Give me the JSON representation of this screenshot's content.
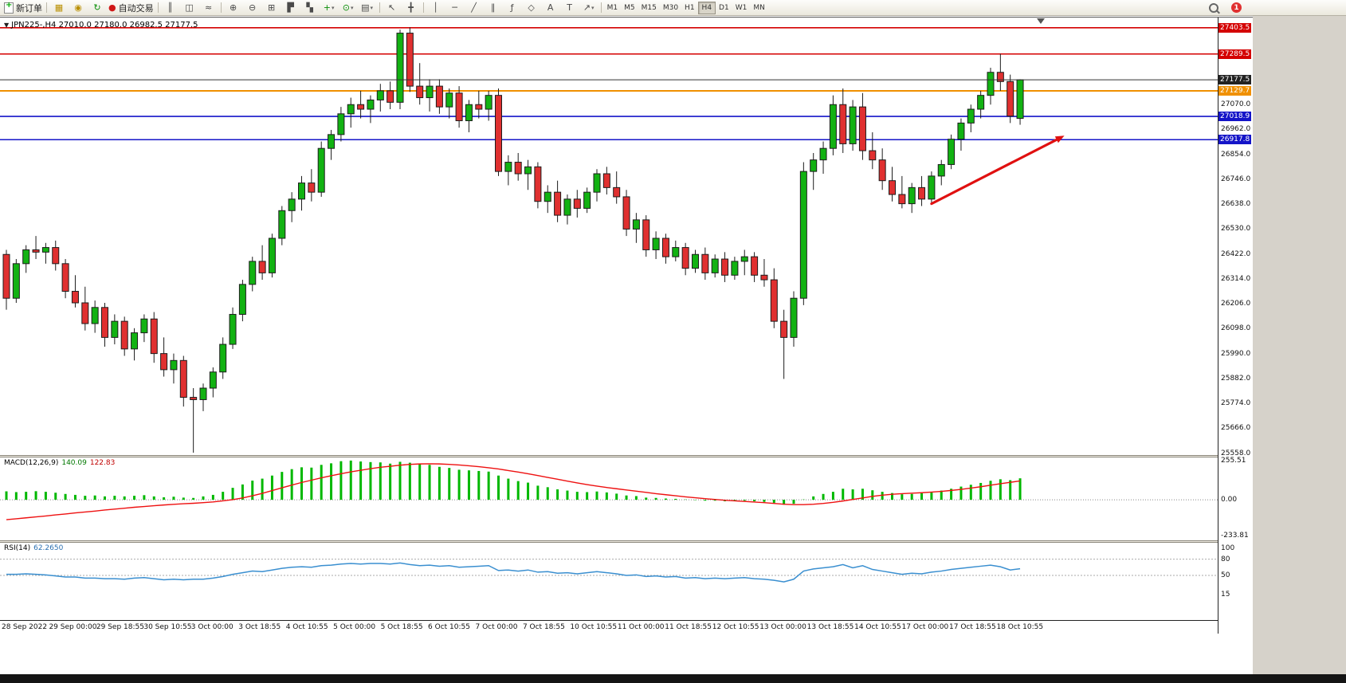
{
  "window": {
    "symbol_period": "JPN225-,H4",
    "ohlc": "27010.0 27180.0 26982.5 27177.5"
  },
  "toolbar": {
    "new_order_label": "新订单",
    "auto_trading_label": "自动交易",
    "timeframes": [
      "M1",
      "M5",
      "M15",
      "M30",
      "H1",
      "H4",
      "D1",
      "W1",
      "MN"
    ],
    "active_timeframe": "H4",
    "notification_count": "1"
  },
  "icons": {
    "market_watch": "▦",
    "alerts": "◉",
    "refresh": "↻",
    "autotrade": "●",
    "bar_chart": "║",
    "candle_chart": "◫",
    "line_chart": "≈",
    "zoom_in": "⊕",
    "zoom_out": "⊖",
    "tile_windows": "⊞",
    "cascade_windows": "▛",
    "arrange_windows": "▚",
    "new_chart": "+",
    "periods": "⊙",
    "templates": "▤",
    "cursor": "↖",
    "crosshair": "╋",
    "vertical_line": "│",
    "horizontal_line": "─",
    "trendline": "╱",
    "channel": "∥",
    "fibonacci": "ƒ",
    "shapes": "◇",
    "text": "A",
    "text_label": "T",
    "arrows": "↗",
    "dropdown": "▾",
    "one_click": "▼"
  },
  "chart_data": {
    "type": "candlestick",
    "symbol": "JPN225-",
    "timeframe": "H4",
    "current_bar": {
      "open": 27010.0,
      "high": 27180.0,
      "low": 26982.5,
      "close": 27177.5
    },
    "main": {
      "price_range": {
        "max": 27420,
        "min": 25560
      },
      "price_axis_ticks": [
        27070.0,
        26962.0,
        26854.0,
        26746.0,
        26638.0,
        26530.0,
        26422.0,
        26314.0,
        26206.0,
        26098.0,
        25990.0,
        25882.0,
        25774.0,
        25666.0,
        25558.0
      ],
      "up_color": "#12b212",
      "down_color": "#e03030",
      "levels": [
        {
          "label": "27403.5",
          "price": 27403.5,
          "color": "#d40000",
          "type": "resistance"
        },
        {
          "label": "27289.5",
          "price": 27289.5,
          "color": "#d40000",
          "type": "resistance"
        },
        {
          "label": "27177.5",
          "price": 27177.5,
          "color": "#333333",
          "type": "current-price"
        },
        {
          "label": "27129.7",
          "price": 27129.7,
          "color": "#f09000",
          "type": "level"
        },
        {
          "label": "27018.9",
          "price": 27018.9,
          "color": "#1414c8",
          "type": "support"
        },
        {
          "label": "26917.8",
          "price": 26917.8,
          "color": "#1414c8",
          "type": "support"
        }
      ],
      "arrow": {
        "from_bar": 94,
        "from_price": 26640,
        "to_bar": 107.5,
        "to_price": 26935,
        "color": "#e01010"
      },
      "candles": [
        [
          26420,
          26440,
          26180,
          26230
        ],
        [
          26230,
          26400,
          26210,
          26380
        ],
        [
          26380,
          26460,
          26340,
          26440
        ],
        [
          26440,
          26500,
          26400,
          26430
        ],
        [
          26430,
          26470,
          26380,
          26450
        ],
        [
          26450,
          26480,
          26350,
          26380
        ],
        [
          26380,
          26400,
          26230,
          26260
        ],
        [
          26260,
          26330,
          26190,
          26210
        ],
        [
          26210,
          26280,
          26090,
          26120
        ],
        [
          26120,
          26220,
          26080,
          26190
        ],
        [
          26190,
          26210,
          26020,
          26060
        ],
        [
          26060,
          26160,
          26030,
          26130
        ],
        [
          26130,
          26150,
          25980,
          26010
        ],
        [
          26010,
          26100,
          25960,
          26080
        ],
        [
          26080,
          26160,
          26040,
          26140
        ],
        [
          26140,
          26170,
          25950,
          25990
        ],
        [
          25990,
          26060,
          25890,
          25920
        ],
        [
          25920,
          25990,
          25860,
          25960
        ],
        [
          25960,
          25980,
          25760,
          25800
        ],
        [
          25800,
          25840,
          25560,
          25790
        ],
        [
          25790,
          25860,
          25740,
          25840
        ],
        [
          25840,
          25930,
          25800,
          25910
        ],
        [
          25910,
          26060,
          25880,
          26030
        ],
        [
          26030,
          26190,
          26010,
          26160
        ],
        [
          26160,
          26310,
          26130,
          26290
        ],
        [
          26290,
          26410,
          26260,
          26390
        ],
        [
          26390,
          26460,
          26310,
          26340
        ],
        [
          26340,
          26510,
          26320,
          26490
        ],
        [
          26490,
          26630,
          26460,
          26610
        ],
        [
          26610,
          26690,
          26560,
          26660
        ],
        [
          26660,
          26760,
          26610,
          26730
        ],
        [
          26730,
          26790,
          26650,
          26690
        ],
        [
          26690,
          26910,
          26670,
          26880
        ],
        [
          26880,
          26960,
          26830,
          26940
        ],
        [
          26940,
          27060,
          26910,
          27030
        ],
        [
          27030,
          27100,
          26970,
          27070
        ],
        [
          27070,
          27130,
          27010,
          27050
        ],
        [
          27050,
          27110,
          26990,
          27090
        ],
        [
          27090,
          27160,
          27040,
          27130
        ],
        [
          27130,
          27170,
          27050,
          27080
        ],
        [
          27080,
          27395,
          27050,
          27380
        ],
        [
          27380,
          27405,
          27125,
          27150
        ],
        [
          27150,
          27250,
          27070,
          27100
        ],
        [
          27100,
          27180,
          27040,
          27150
        ],
        [
          27150,
          27180,
          27030,
          27060
        ],
        [
          27060,
          27140,
          27010,
          27120
        ],
        [
          27120,
          27150,
          26970,
          27000
        ],
        [
          27000,
          27090,
          26950,
          27070
        ],
        [
          27070,
          27130,
          27010,
          27050
        ],
        [
          27050,
          27130,
          27000,
          27110
        ],
        [
          27110,
          27140,
          26760,
          26780
        ],
        [
          26780,
          26850,
          26720,
          26820
        ],
        [
          26820,
          26860,
          26740,
          26770
        ],
        [
          26770,
          26830,
          26700,
          26800
        ],
        [
          26800,
          26820,
          26620,
          26650
        ],
        [
          26650,
          26720,
          26600,
          26690
        ],
        [
          26690,
          26740,
          26560,
          26590
        ],
        [
          26590,
          26680,
          26550,
          26660
        ],
        [
          26660,
          26700,
          26580,
          26620
        ],
        [
          26620,
          26710,
          26600,
          26690
        ],
        [
          26690,
          26790,
          26650,
          26770
        ],
        [
          26770,
          26800,
          26680,
          26710
        ],
        [
          26710,
          26780,
          26640,
          26670
        ],
        [
          26670,
          26700,
          26500,
          26530
        ],
        [
          26530,
          26600,
          26470,
          26570
        ],
        [
          26570,
          26590,
          26410,
          26440
        ],
        [
          26440,
          26520,
          26400,
          26490
        ],
        [
          26490,
          26510,
          26380,
          26410
        ],
        [
          26410,
          26480,
          26390,
          26450
        ],
        [
          26450,
          26470,
          26330,
          26360
        ],
        [
          26360,
          26440,
          26340,
          26420
        ],
        [
          26420,
          26450,
          26310,
          26340
        ],
        [
          26340,
          26420,
          26320,
          26400
        ],
        [
          26400,
          26430,
          26300,
          26330
        ],
        [
          26330,
          26410,
          26310,
          26390
        ],
        [
          26390,
          26440,
          26330,
          26410
        ],
        [
          26410,
          26430,
          26300,
          26330
        ],
        [
          26330,
          26400,
          26280,
          26310
        ],
        [
          26310,
          26360,
          26100,
          26130
        ],
        [
          26130,
          26180,
          25880,
          26060
        ],
        [
          26060,
          26260,
          26020,
          26230
        ],
        [
          26230,
          26820,
          26200,
          26780
        ],
        [
          26780,
          26860,
          26700,
          26830
        ],
        [
          26830,
          26910,
          26770,
          26880
        ],
        [
          26880,
          27110,
          26850,
          27070
        ],
        [
          27070,
          27140,
          26860,
          26900
        ],
        [
          26900,
          27090,
          26870,
          27060
        ],
        [
          27060,
          27120,
          26830,
          26870
        ],
        [
          26870,
          26950,
          26790,
          26830
        ],
        [
          26830,
          26880,
          26700,
          26740
        ],
        [
          26740,
          26800,
          26650,
          26680
        ],
        [
          26680,
          26760,
          26620,
          26640
        ],
        [
          26640,
          26730,
          26600,
          26710
        ],
        [
          26710,
          26760,
          26630,
          26660
        ],
        [
          26660,
          26780,
          26640,
          26760
        ],
        [
          26760,
          26830,
          26720,
          26810
        ],
        [
          26810,
          26940,
          26790,
          26920
        ],
        [
          26920,
          27010,
          26870,
          26990
        ],
        [
          26990,
          27070,
          26950,
          27050
        ],
        [
          27050,
          27130,
          27010,
          27110
        ],
        [
          27110,
          27230,
          27070,
          27210
        ],
        [
          27210,
          27290,
          27130,
          27170
        ],
        [
          27170,
          27200,
          26990,
          27020
        ],
        [
          27010,
          27180,
          26982.5,
          27177.5
        ]
      ]
    },
    "macd": {
      "name": "MACD(12,26,9)",
      "value_main": "140.09",
      "value_signal": "122.83",
      "range": {
        "max": 255.51,
        "min": -233.81
      },
      "axis_ticks": [
        {
          "label": "255.51",
          "value": 255.51
        },
        {
          "label": "0.00",
          "value": 0
        },
        {
          "label": "-233.81",
          "value": -233.81
        }
      ],
      "histogram_color": "#00b800",
      "signal_color": "#ee1111",
      "histogram": [
        55,
        50,
        52,
        56,
        52,
        46,
        38,
        32,
        26,
        28,
        22,
        26,
        22,
        26,
        30,
        22,
        16,
        20,
        14,
        12,
        22,
        32,
        52,
        78,
        100,
        125,
        138,
        158,
        182,
        200,
        212,
        210,
        228,
        238,
        252,
        256,
        250,
        246,
        244,
        236,
        248,
        242,
        235,
        228,
        215,
        208,
        196,
        192,
        188,
        184,
        158,
        138,
        122,
        112,
        92,
        82,
        68,
        60,
        52,
        50,
        54,
        48,
        40,
        28,
        24,
        14,
        12,
        8,
        6,
        2,
        -2,
        -6,
        -6,
        -10,
        -10,
        -6,
        -10,
        -14,
        -20,
        -32,
        -26,
        2,
        22,
        38,
        52,
        72,
        68,
        72,
        62,
        52,
        44,
        36,
        38,
        42,
        50,
        60,
        72,
        86,
        98,
        110,
        124,
        134,
        128,
        140.09
      ],
      "signal": [
        -130,
        -124,
        -118,
        -112,
        -106,
        -99,
        -93,
        -86,
        -80,
        -74,
        -67,
        -61,
        -55,
        -49,
        -44,
        -39,
        -34,
        -30,
        -26,
        -23,
        -19,
        -14,
        -7,
        1,
        12,
        26,
        42,
        60,
        78,
        96,
        113,
        128,
        143,
        157,
        170,
        182,
        193,
        203,
        212,
        219,
        226,
        231,
        234,
        235,
        234,
        231,
        227,
        222,
        216,
        209,
        201,
        191,
        181,
        170,
        158,
        146,
        134,
        122,
        110,
        99,
        89,
        80,
        72,
        64,
        56,
        48,
        40,
        33,
        26,
        19,
        13,
        7,
        2,
        -3,
        -7,
        -11,
        -15,
        -19,
        -24,
        -29,
        -32,
        -32,
        -29,
        -24,
        -17,
        -8,
        2,
        12,
        22,
        30,
        36,
        40,
        43,
        46,
        50,
        55,
        61,
        68,
        76,
        85,
        95,
        105,
        114,
        122.83
      ]
    },
    "rsi": {
      "name": "RSI(14)",
      "value": "62.2650",
      "range": {
        "max": 100,
        "min": 0
      },
      "axis_ticks": [
        {
          "label": "100",
          "value": 100
        },
        {
          "label": "80",
          "value": 80
        },
        {
          "label": "50",
          "value": 50
        },
        {
          "label": "15",
          "value": 15
        }
      ],
      "levels": [
        80,
        50
      ],
      "line_color": "#3a8fd0",
      "values": [
        52,
        52,
        53,
        52,
        51,
        49,
        47,
        47,
        45,
        45,
        44,
        44,
        43,
        45,
        46,
        44,
        42,
        43,
        42,
        43,
        43,
        45,
        48,
        52,
        55,
        58,
        57,
        60,
        63,
        65,
        66,
        65,
        68,
        69,
        71,
        72,
        71,
        72,
        72,
        71,
        73,
        70,
        68,
        69,
        67,
        68,
        65,
        66,
        67,
        68,
        59,
        60,
        58,
        60,
        56,
        57,
        54,
        55,
        53,
        55,
        57,
        55,
        53,
        50,
        51,
        48,
        49,
        47,
        48,
        45,
        46,
        44,
        45,
        44,
        45,
        46,
        44,
        43,
        41,
        38,
        43,
        58,
        62,
        64,
        66,
        70,
        64,
        68,
        61,
        58,
        55,
        52,
        54,
        53,
        56,
        58,
        61,
        63,
        65,
        67,
        69,
        66,
        60,
        62.265
      ]
    },
    "time_axis": [
      "28 Sep 2022",
      "29 Sep 00:00",
      "29 Sep 18:55",
      "30 Sep 10:55",
      "3 Oct 00:00",
      "3 Oct 18:55",
      "4 Oct 10:55",
      "5 Oct 00:00",
      "5 Oct 18:55",
      "6 Oct 10:55",
      "7 Oct 00:00",
      "7 Oct 18:55",
      "10 Oct 10:55",
      "11 Oct 00:00",
      "11 Oct 18:55",
      "12 Oct 10:55",
      "13 Oct 00:00",
      "13 Oct 18:55",
      "14 Oct 10:55",
      "17 Oct 00:00",
      "17 Oct 18:55",
      "18 Oct 10:55"
    ]
  }
}
